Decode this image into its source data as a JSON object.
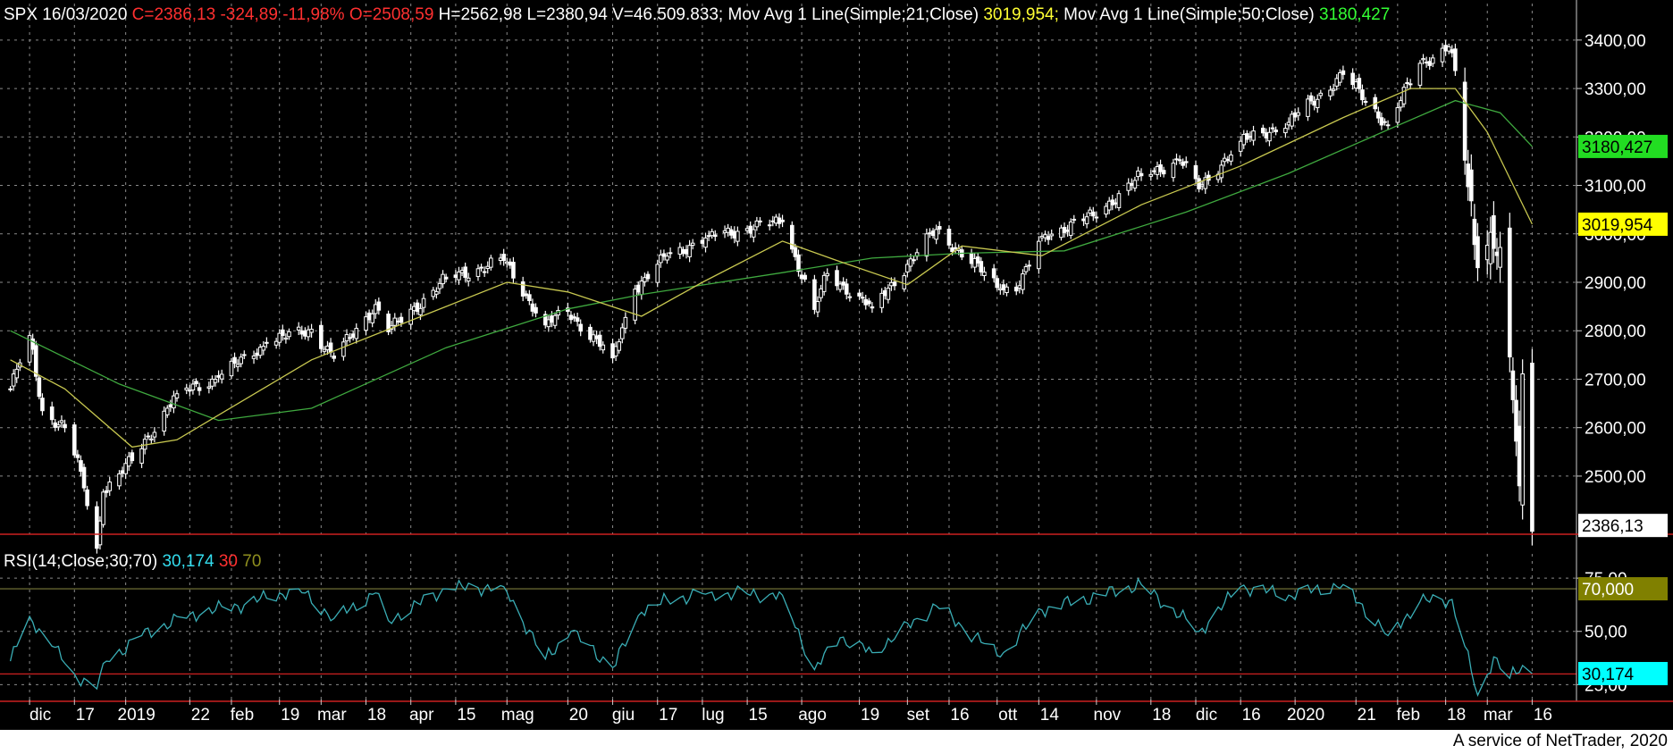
{
  "header": {
    "symbol": "SPX 16/03/2020",
    "close": "C=2386,13",
    "change": "-324,89",
    "change_pct": "-11,98%",
    "open": "O=2508,59",
    "hlv": "H=2562,98 L=2380,94 V=46.509.833;",
    "ma21_label": "Mov Avg 1 Line(Simple;21;Close)",
    "ma21_value": "3019,954;",
    "ma50_label": "Mov Avg 1 Line(Simple;50;Close)",
    "ma50_value": "3180,427"
  },
  "rsi_header": {
    "label": "RSI(14;Close;30;70)",
    "value": "30,174",
    "lower": "30",
    "upper": "70"
  },
  "footer": "A service of NetTrader, 2020",
  "colors": {
    "background": "#000000",
    "grid": "#8a8a8a",
    "candle": "#ffffff",
    "ma21": "#c8c850",
    "ma50": "#3fa93f",
    "rsi": "#3aaeb6",
    "separator": "#cc2020",
    "ma21_badge": "#ffff00",
    "ma50_badge": "#22dd22",
    "rsi70_badge": "#808000",
    "rsi_badge": "#00ffff",
    "close_badge": "#ffffff"
  },
  "chart_data": [
    {
      "type": "candlestick",
      "symbol": "SPX",
      "ylim": [
        2380,
        3420
      ],
      "y_ticks": [
        "2500,00",
        "2600,00",
        "2700,00",
        "2800,00",
        "2900,00",
        "3000,00",
        "3100,00",
        "3200,00",
        "3300,00",
        "3400,00"
      ],
      "x_labels": [
        "dic",
        "17",
        "2019",
        "22",
        "feb",
        "19",
        "mar",
        "18",
        "apr",
        "15",
        "mag",
        "20",
        "giu",
        "17",
        "lug",
        "15",
        "ago",
        "19",
        "set",
        "16",
        "ott",
        "14",
        "nov",
        "18",
        "dic",
        "16",
        "2020",
        "21",
        "feb",
        "18",
        "mar",
        "16"
      ],
      "badges": {
        "ma50": "3180,427",
        "ma21": "3019,954",
        "close": "2386,13"
      },
      "close_points": [
        [
          "2018-11-27",
          2680
        ],
        [
          "2018-12-03",
          2790
        ],
        [
          "2018-12-07",
          2635
        ],
        [
          "2018-12-14",
          2600
        ],
        [
          "2018-12-19",
          2510
        ],
        [
          "2018-12-24",
          2351
        ],
        [
          "2018-12-26",
          2467
        ],
        [
          "2019-01-04",
          2532
        ],
        [
          "2019-01-18",
          2670
        ],
        [
          "2019-01-31",
          2704
        ],
        [
          "2019-02-15",
          2775
        ],
        [
          "2019-03-01",
          2803
        ],
        [
          "2019-03-08",
          2743
        ],
        [
          "2019-03-21",
          2854
        ],
        [
          "2019-03-25",
          2798
        ],
        [
          "2019-04-12",
          2907
        ],
        [
          "2019-04-30",
          2945
        ],
        [
          "2019-05-13",
          2812
        ],
        [
          "2019-05-20",
          2840
        ],
        [
          "2019-06-03",
          2744
        ],
        [
          "2019-06-10",
          2886
        ],
        [
          "2019-06-20",
          2954
        ],
        [
          "2019-07-03",
          2995
        ],
        [
          "2019-07-26",
          3025
        ],
        [
          "2019-08-05",
          2844
        ],
        [
          "2019-08-09",
          2918
        ],
        [
          "2019-08-23",
          2847
        ],
        [
          "2019-09-12",
          3009
        ],
        [
          "2019-10-02",
          2887
        ],
        [
          "2019-10-08",
          2893
        ],
        [
          "2019-10-15",
          2995
        ],
        [
          "2019-10-31",
          3037
        ],
        [
          "2019-11-15",
          3120
        ],
        [
          "2019-11-27",
          3153
        ],
        [
          "2019-12-03",
          3093
        ],
        [
          "2019-12-16",
          3191
        ],
        [
          "2019-12-31",
          3230
        ],
        [
          "2020-01-17",
          3329
        ],
        [
          "2020-01-31",
          3225
        ],
        [
          "2020-02-10",
          3352
        ],
        [
          "2020-02-19",
          3386
        ],
        [
          "2020-02-21",
          3337
        ],
        [
          "2020-02-27",
          2978
        ],
        [
          "2020-03-03",
          3003
        ],
        [
          "2020-03-06",
          2972
        ],
        [
          "2020-03-09",
          2746
        ],
        [
          "2020-03-12",
          2480
        ],
        [
          "2020-03-13",
          2711
        ],
        [
          "2020-03-16",
          2386
        ]
      ],
      "ma21_points": [
        [
          "2018-11-27",
          2740
        ],
        [
          "2018-12-14",
          2680
        ],
        [
          "2019-01-04",
          2560
        ],
        [
          "2019-01-18",
          2575
        ],
        [
          "2019-02-01",
          2630
        ],
        [
          "2019-03-01",
          2740
        ],
        [
          "2019-04-12",
          2850
        ],
        [
          "2019-05-01",
          2900
        ],
        [
          "2019-05-20",
          2880
        ],
        [
          "2019-06-12",
          2830
        ],
        [
          "2019-07-01",
          2900
        ],
        [
          "2019-07-26",
          2985
        ],
        [
          "2019-08-12",
          2945
        ],
        [
          "2019-09-03",
          2895
        ],
        [
          "2019-09-20",
          2975
        ],
        [
          "2019-10-15",
          2955
        ],
        [
          "2019-11-15",
          3060
        ],
        [
          "2019-12-16",
          3140
        ],
        [
          "2020-01-17",
          3240
        ],
        [
          "2020-02-07",
          3300
        ],
        [
          "2020-02-21",
          3300
        ],
        [
          "2020-03-02",
          3210
        ],
        [
          "2020-03-16",
          3019.954
        ]
      ],
      "ma50_points": [
        [
          "2018-11-27",
          2800
        ],
        [
          "2018-12-31",
          2690
        ],
        [
          "2019-01-31",
          2615
        ],
        [
          "2019-03-01",
          2640
        ],
        [
          "2019-04-12",
          2765
        ],
        [
          "2019-05-20",
          2845
        ],
        [
          "2019-06-12",
          2875
        ],
        [
          "2019-07-26",
          2920
        ],
        [
          "2019-08-23",
          2950
        ],
        [
          "2019-09-20",
          2960
        ],
        [
          "2019-10-22",
          2965
        ],
        [
          "2019-11-29",
          3045
        ],
        [
          "2019-12-31",
          3125
        ],
        [
          "2020-01-31",
          3215
        ],
        [
          "2020-02-21",
          3275
        ],
        [
          "2020-03-06",
          3250
        ],
        [
          "2020-03-16",
          3180.427
        ]
      ]
    },
    {
      "type": "line",
      "name": "RSI(14;Close;30;70)",
      "ylim": [
        18,
        78
      ],
      "y_ticks": [
        "25,00",
        "50,00",
        "75,00"
      ],
      "levels": [
        30,
        70
      ],
      "badges": {
        "upper": "70,000",
        "value": "30,174"
      },
      "points": [
        [
          "2018-11-27",
          36
        ],
        [
          "2018-12-03",
          57
        ],
        [
          "2018-12-10",
          43
        ],
        [
          "2018-12-17",
          30
        ],
        [
          "2018-12-24",
          23
        ],
        [
          "2018-12-27",
          36
        ],
        [
          "2019-01-07",
          48
        ],
        [
          "2019-01-22",
          58
        ],
        [
          "2019-02-06",
          62
        ],
        [
          "2019-02-25",
          70
        ],
        [
          "2019-03-08",
          56
        ],
        [
          "2019-03-21",
          68
        ],
        [
          "2019-03-25",
          55
        ],
        [
          "2019-04-12",
          70
        ],
        [
          "2019-04-30",
          71
        ],
        [
          "2019-05-13",
          37
        ],
        [
          "2019-05-21",
          50
        ],
        [
          "2019-06-03",
          33
        ],
        [
          "2019-06-12",
          59
        ],
        [
          "2019-06-20",
          65
        ],
        [
          "2019-07-03",
          68
        ],
        [
          "2019-07-26",
          67
        ],
        [
          "2019-08-05",
          32
        ],
        [
          "2019-08-13",
          47
        ],
        [
          "2019-08-23",
          40
        ],
        [
          "2019-09-12",
          62
        ],
        [
          "2019-10-02",
          38
        ],
        [
          "2019-10-15",
          60
        ],
        [
          "2019-11-15",
          72
        ],
        [
          "2019-12-03",
          50
        ],
        [
          "2019-12-16",
          71
        ],
        [
          "2019-12-31",
          67
        ],
        [
          "2020-01-17",
          72
        ],
        [
          "2020-01-31",
          48
        ],
        [
          "2020-02-10",
          64
        ],
        [
          "2020-02-20",
          65
        ],
        [
          "2020-02-28",
          20
        ],
        [
          "2020-03-04",
          38
        ],
        [
          "2020-03-09",
          28
        ],
        [
          "2020-03-13",
          34
        ],
        [
          "2020-03-16",
          30.174
        ]
      ]
    }
  ]
}
